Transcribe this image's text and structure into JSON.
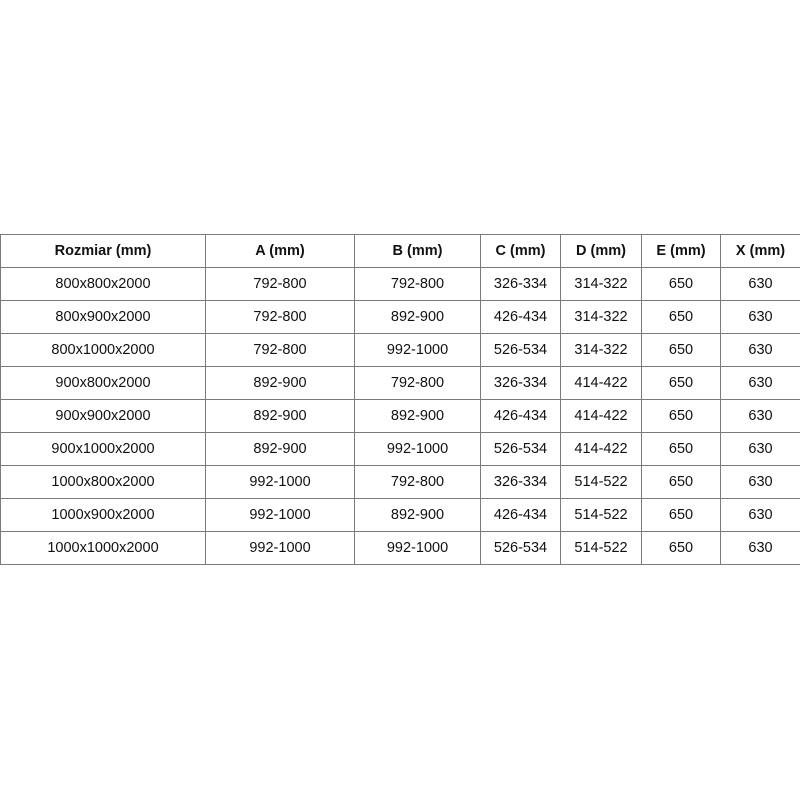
{
  "table": {
    "headers": [
      "Rozmiar (mm)",
      "A (mm)",
      "B (mm)",
      "C (mm)",
      "D (mm)",
      "E (mm)",
      "X (mm)"
    ],
    "rows": [
      [
        "800x800x2000",
        "792-800",
        "792-800",
        "326-334",
        "314-322",
        "650",
        "630"
      ],
      [
        "800x900x2000",
        "792-800",
        "892-900",
        "426-434",
        "314-322",
        "650",
        "630"
      ],
      [
        "800x1000x2000",
        "792-800",
        "992-1000",
        "526-534",
        "314-322",
        "650",
        "630"
      ],
      [
        "900x800x2000",
        "892-900",
        "792-800",
        "326-334",
        "414-422",
        "650",
        "630"
      ],
      [
        "900x900x2000",
        "892-900",
        "892-900",
        "426-434",
        "414-422",
        "650",
        "630"
      ],
      [
        "900x1000x2000",
        "892-900",
        "992-1000",
        "526-534",
        "414-422",
        "650",
        "630"
      ],
      [
        "1000x800x2000",
        "992-1000",
        "792-800",
        "326-334",
        "514-522",
        "650",
        "630"
      ],
      [
        "1000x900x2000",
        "992-1000",
        "892-900",
        "426-434",
        "514-522",
        "650",
        "630"
      ],
      [
        "1000x1000x2000",
        "992-1000",
        "992-1000",
        "526-534",
        "514-522",
        "650",
        "630"
      ]
    ]
  }
}
